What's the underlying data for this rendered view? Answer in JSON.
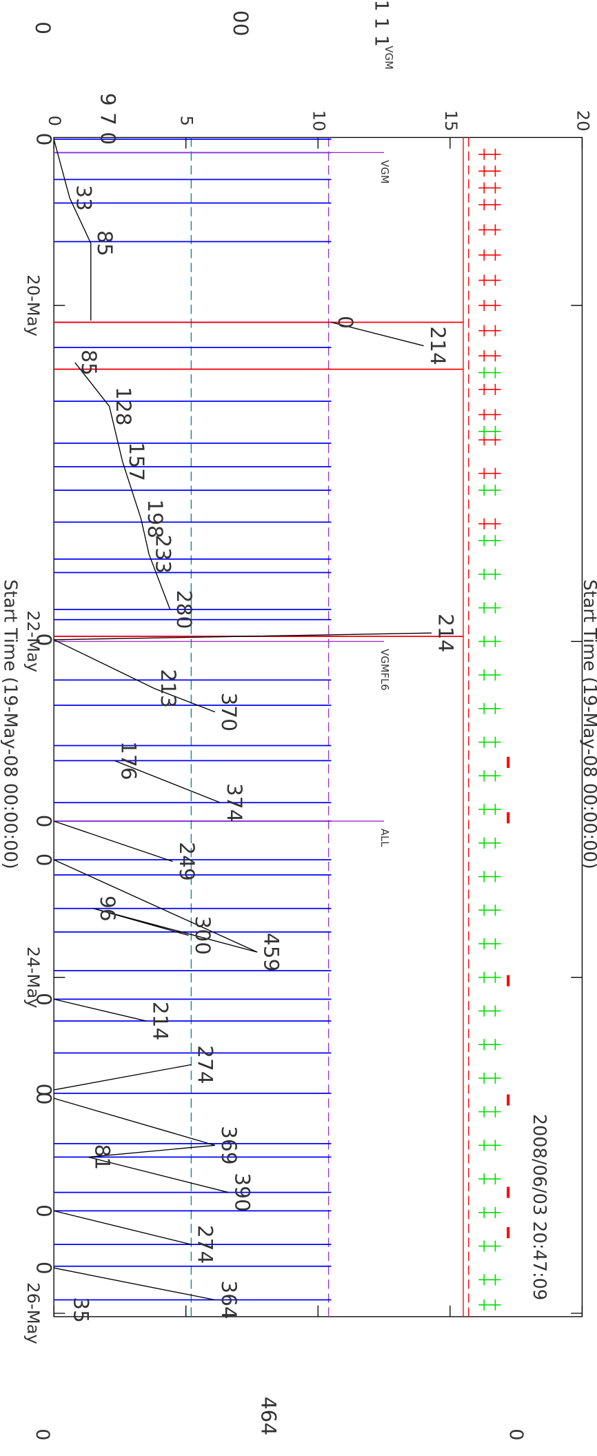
{
  "chart_data": {
    "type": "timeline",
    "axis_label": "Start Time (19-May-08 00:00:00)",
    "timestamp": "2008/06/03 20:47:09",
    "xlim": [
      0,
      7.02
    ],
    "xticks": [
      {
        "value": 1,
        "label": "20-May"
      },
      {
        "value": 3,
        "label": "22-May"
      },
      {
        "value": 5,
        "label": "24-May"
      },
      {
        "value": 7,
        "label": "26-May"
      }
    ],
    "ylim": [
      0,
      20
    ],
    "yticks": [
      0,
      5,
      10,
      15,
      20
    ],
    "events": {
      "color": "#0000ff",
      "x": [
        0.01,
        0.09,
        0.25,
        0.39,
        0.62,
        1.1,
        1.25,
        1.38,
        1.57,
        1.82,
        1.96,
        2.1,
        2.29,
        2.51,
        2.59,
        2.81,
        2.87,
        2.97,
        3.23,
        3.38,
        3.62,
        3.71,
        3.96,
        4.07,
        4.3,
        4.39,
        4.59,
        4.73,
        4.96,
        5.13,
        5.26,
        5.45,
        5.69,
        5.99,
        6.07,
        6.28,
        6.39,
        6.59,
        6.72,
        6.92
      ],
      "values": [
        10.5,
        10.5,
        10.5,
        10.5,
        10.5,
        10.5,
        10.5,
        10.5,
        10.5,
        10.5,
        10.5,
        10.5,
        10.5,
        10.5,
        10.5,
        10.5,
        10.5,
        10.5,
        10.5,
        10.5,
        10.5,
        10.5,
        10.5,
        10.5,
        10.5,
        10.5,
        10.5,
        10.5,
        10.5,
        10.5,
        10.5,
        10.5,
        10.5,
        10.5,
        10.5,
        10.5,
        10.5,
        10.5,
        10.5,
        10.5
      ]
    },
    "red_events": {
      "color": "#ff0000",
      "x": [
        1.1,
        1.38,
        2.97
      ],
      "values": [
        15.5,
        15.5,
        15.5
      ]
    },
    "limits": [
      {
        "value": 15.5,
        "color": "#ff0000",
        "dash": false
      },
      {
        "value": 15.7,
        "color": "#ff0000",
        "dash": true
      },
      {
        "value": 5.2,
        "color": "#008b8b",
        "dash": true
      },
      {
        "value": 10.4,
        "color": "#9932cc",
        "dash": true
      }
    ],
    "trace": {
      "color": "#000000",
      "x": [
        0.01,
        0.36,
        0.63,
        1.09,
        null,
        1.1,
        1.24,
        null,
        1.34,
        1.6,
        1.93,
        2.27,
        2.48,
        2.81,
        null,
        2.99,
        2.95,
        null,
        2.99,
        3.28,
        3.42,
        null,
        3.71,
        3.96,
        null,
        4.07,
        4.31,
        null,
        4.3,
        4.85,
        4.59,
        4.75,
        null,
        5.13,
        5.26,
        null,
        5.67,
        5.52,
        null,
        5.72,
        6.0,
        6.07,
        6.28,
        null,
        6.39,
        6.59,
        null,
        6.73,
        6.92,
        null,
        6.98
      ],
      "values": [
        0,
        0.6,
        1.4,
        1.4,
        null,
        10.5,
        14.0,
        null,
        0.8,
        2.1,
        2.6,
        3.3,
        3.6,
        4.4,
        null,
        0,
        14.3,
        null,
        0,
        3.8,
        6.1,
        null,
        2.3,
        6.3,
        null,
        0,
        4.5,
        null,
        0,
        7.7,
        1.5,
        5.1,
        null,
        0,
        3.5,
        null,
        0,
        5.2,
        null,
        0,
        6.1,
        1.3,
        6.6,
        null,
        0,
        5.2,
        null,
        0,
        6.1,
        null,
        0.5
      ],
      "labels": [
        "0",
        "33",
        "85",
        null,
        null,
        "0",
        "214",
        null,
        "85",
        "128",
        "157",
        "198",
        "233",
        "280",
        null,
        "0",
        "214",
        null,
        "0",
        "213",
        "370",
        null,
        "176",
        "374",
        null,
        "0",
        "249",
        null,
        "0",
        "459",
        "96",
        "300",
        null,
        "0",
        "214",
        null,
        "0",
        "274",
        null,
        "0",
        "369",
        "81",
        "390",
        null,
        "0",
        "274",
        null,
        "0",
        "364",
        null,
        "35"
      ]
    },
    "markers": [
      {
        "color": "#ff0000",
        "x": [
          0.1,
          0.2,
          0.3,
          0.4,
          0.55,
          0.7,
          0.85,
          1.0,
          1.15,
          1.3,
          1.5,
          1.65,
          1.8,
          2.0,
          2.3
        ],
        "values": [
          16.5,
          16.5,
          16.5,
          16.5,
          16.5,
          16.5,
          16.5,
          16.5,
          16.5,
          16.5,
          16.5,
          16.5,
          16.5,
          16.5,
          16.5
        ]
      },
      {
        "color": "#00dd00",
        "x": [
          1.4,
          1.75,
          2.1,
          2.4,
          2.6,
          2.8,
          3.0,
          3.2,
          3.4,
          3.6,
          3.8,
          4.0,
          4.2,
          4.4,
          4.6,
          4.8,
          5.0,
          5.2,
          5.4,
          5.6,
          5.8,
          6.0,
          6.2,
          6.4,
          6.6,
          6.8,
          6.95
        ],
        "values": [
          16.5,
          16.5,
          16.5,
          16.5,
          16.5,
          16.5,
          16.5,
          16.5,
          16.5,
          16.5,
          16.5,
          16.5,
          16.5,
          16.5,
          16.5,
          16.5,
          16.5,
          16.5,
          16.5,
          16.5,
          16.5,
          16.5,
          16.5,
          16.5,
          16.5,
          16.5,
          16.5
        ]
      }
    ],
    "alerts": {
      "color": "#ff0000",
      "x": [
        3.72,
        4.05,
        5.02,
        5.73,
        6.28,
        6.52
      ],
      "values": [
        17.2,
        17.2,
        17.2,
        17.2,
        17.2,
        17.2
      ]
    },
    "flags": {
      "color": "#9932cc",
      "x": [
        0.09,
        3.0,
        4.07
      ],
      "values": [
        12.5,
        12.5,
        12.5
      ],
      "labels": [
        "VGM",
        "VGMFL6",
        "ALL"
      ]
    },
    "stray_text": [
      "0",
      "00",
      "1 1 1",
      "VGM",
      "9 7 0",
      "464",
      "0",
      "0"
    ]
  }
}
